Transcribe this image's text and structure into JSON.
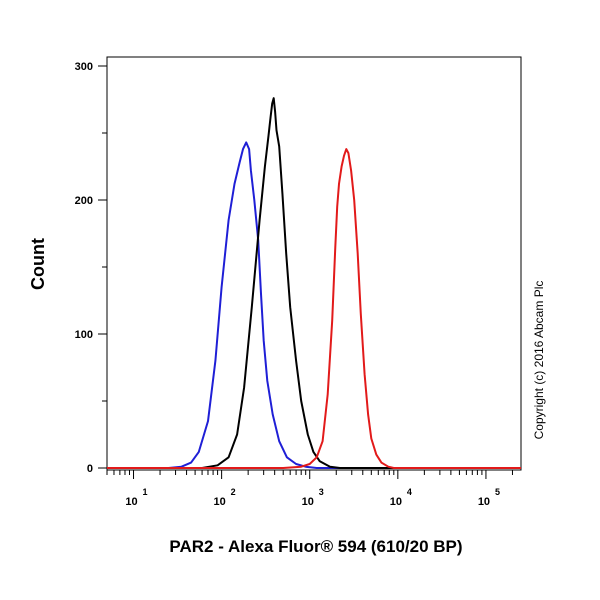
{
  "chart_data": {
    "type": "line",
    "xlabel": "PAR2 - Alexa Fluor® 594 (610/20 BP)",
    "ylabel": "Count",
    "x_scale": "log",
    "xlim": [
      5,
      250000
    ],
    "ylim": [
      0,
      300
    ],
    "y_ticks": [
      {
        "value": 0,
        "label": "0"
      },
      {
        "value": 100,
        "label": "100"
      },
      {
        "value": 200,
        "label": "200"
      },
      {
        "value": 300,
        "label": "300"
      }
    ],
    "x_ticks": [
      {
        "value": 10,
        "base": "10",
        "exp": "1"
      },
      {
        "value": 100,
        "base": "10",
        "exp": "2"
      },
      {
        "value": 1000,
        "base": "10",
        "exp": "3"
      },
      {
        "value": 10000,
        "base": "10",
        "exp": "4"
      },
      {
        "value": 100000,
        "base": "10",
        "exp": "5"
      }
    ],
    "grid": false,
    "legend": "none",
    "series": [
      {
        "color": "#1f1fd6",
        "points": [
          [
            5,
            0
          ],
          [
            25,
            0
          ],
          [
            35,
            1
          ],
          [
            45,
            4
          ],
          [
            55,
            12
          ],
          [
            70,
            35
          ],
          [
            85,
            80
          ],
          [
            100,
            135
          ],
          [
            120,
            185
          ],
          [
            140,
            212
          ],
          [
            160,
            228
          ],
          [
            175,
            238
          ],
          [
            190,
            243
          ],
          [
            205,
            238
          ],
          [
            215,
            222
          ],
          [
            235,
            200
          ],
          [
            260,
            170
          ],
          [
            280,
            130
          ],
          [
            300,
            95
          ],
          [
            330,
            65
          ],
          [
            380,
            40
          ],
          [
            450,
            20
          ],
          [
            550,
            8
          ],
          [
            700,
            3
          ],
          [
            900,
            1
          ],
          [
            1200,
            0
          ],
          [
            250000,
            0
          ]
        ]
      },
      {
        "color": "#000000",
        "points": [
          [
            5,
            0
          ],
          [
            60,
            0
          ],
          [
            90,
            2
          ],
          [
            120,
            8
          ],
          [
            150,
            25
          ],
          [
            180,
            60
          ],
          [
            220,
            120
          ],
          [
            270,
            185
          ],
          [
            310,
            225
          ],
          [
            340,
            248
          ],
          [
            360,
            262
          ],
          [
            375,
            272
          ],
          [
            390,
            276
          ],
          [
            405,
            266
          ],
          [
            420,
            252
          ],
          [
            450,
            240
          ],
          [
            490,
            205
          ],
          [
            540,
            160
          ],
          [
            600,
            120
          ],
          [
            700,
            80
          ],
          [
            800,
            50
          ],
          [
            950,
            25
          ],
          [
            1100,
            12
          ],
          [
            1300,
            5
          ],
          [
            1700,
            1
          ],
          [
            2200,
            0
          ],
          [
            250000,
            0
          ]
        ]
      },
      {
        "color": "#e21a1a",
        "points": [
          [
            5,
            0
          ],
          [
            500,
            0
          ],
          [
            800,
            1
          ],
          [
            1000,
            3
          ],
          [
            1200,
            8
          ],
          [
            1400,
            20
          ],
          [
            1600,
            55
          ],
          [
            1800,
            110
          ],
          [
            1950,
            165
          ],
          [
            2050,
            195
          ],
          [
            2150,
            212
          ],
          [
            2300,
            225
          ],
          [
            2450,
            233
          ],
          [
            2600,
            238
          ],
          [
            2750,
            235
          ],
          [
            2950,
            222
          ],
          [
            3200,
            200
          ],
          [
            3500,
            160
          ],
          [
            3800,
            115
          ],
          [
            4200,
            70
          ],
          [
            4600,
            40
          ],
          [
            5000,
            22
          ],
          [
            5700,
            10
          ],
          [
            6500,
            4
          ],
          [
            7800,
            1
          ],
          [
            9000,
            0
          ],
          [
            250000,
            0
          ]
        ]
      }
    ]
  },
  "watermark": "Copyright (c) 2016 Abcam Plc"
}
